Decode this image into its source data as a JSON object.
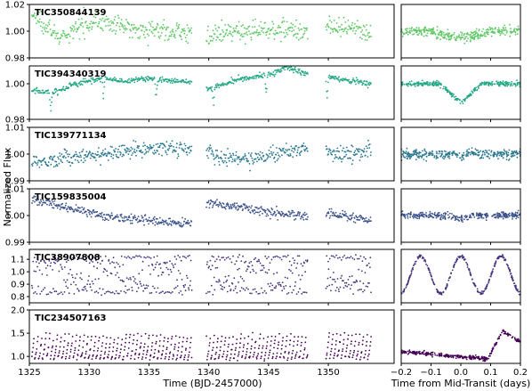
{
  "chart_data": {
    "type": "scatter",
    "ylabel": "Normalized Flux",
    "xlabel_main": "Time (BJD-2457000)",
    "xlabel_phase": "Time from Mid-Transit (days)",
    "xlim_main": [
      1325,
      1355.5
    ],
    "xlim_phase": [
      -0.2,
      0.2
    ],
    "xticks_main": [
      1325,
      1330,
      1335,
      1340,
      1345,
      1350
    ],
    "xtick_labels_main": [
      "1325",
      "1330",
      "1335",
      "1340",
      "1345",
      "1350"
    ],
    "xticks_phase": [
      -0.2,
      -0.1,
      0.0,
      0.1,
      0.2
    ],
    "xtick_labels_phase": [
      "−0.2",
      "−0.1",
      "0.0",
      "0.1",
      "0.2"
    ],
    "data_segments": [
      [
        1325.2,
        1338.6
      ],
      [
        1339.8,
        1348.3
      ],
      [
        1349.8,
        1353.6
      ]
    ],
    "panels": [
      {
        "name": "TIC350844139",
        "color": "#5cc863",
        "ylim": [
          0.98,
          1.02
        ],
        "yticks": [
          0.98,
          1.0,
          1.02
        ],
        "ytick_labels": [
          "0.98",
          "1.00",
          "1.02"
        ],
        "trend": [
          [
            1325.2,
            1.012
          ],
          [
            1326.5,
            1.005
          ],
          [
            1327.5,
            0.994
          ],
          [
            1328.5,
            0.998
          ],
          [
            1329.5,
            1.006
          ],
          [
            1330.5,
            1.009
          ],
          [
            1331.5,
            1.006
          ],
          [
            1333,
            1.003
          ],
          [
            1335,
            1.001
          ],
          [
            1338.6,
            0.999
          ],
          [
            1339.8,
            0.996
          ],
          [
            1342,
            0.999
          ],
          [
            1344,
            1.001
          ],
          [
            1346,
            1.002
          ],
          [
            1348.3,
            1.0
          ],
          [
            1349.8,
            1.003
          ],
          [
            1351.5,
            1.001
          ],
          [
            1353.6,
            1.0
          ]
        ],
        "scatter": 0.0035,
        "phase_curve": "box",
        "phase_depth": 0.004,
        "phase_halfwidth": 0.09,
        "phase_scatter": 0.0018
      },
      {
        "name": "TIC394340319",
        "color": "#22a884",
        "ylim": [
          0.98,
          1.01
        ],
        "yticks": [
          0.98,
          1.0
        ],
        "ytick_labels": [
          "0.98",
          "1.00"
        ],
        "trend": [
          [
            1325.2,
            0.996
          ],
          [
            1327,
            0.995
          ],
          [
            1328.5,
            0.999
          ],
          [
            1330,
            1.002
          ],
          [
            1331.5,
            1.003
          ],
          [
            1333,
            1.001
          ],
          [
            1334.5,
            1.003
          ],
          [
            1336,
            1.002
          ],
          [
            1338.6,
            1.001
          ],
          [
            1339.8,
            0.997
          ],
          [
            1341,
            0.999
          ],
          [
            1342.5,
            1.003
          ],
          [
            1344,
            1.004
          ],
          [
            1345.5,
            1.006
          ],
          [
            1346.5,
            1.009
          ],
          [
            1347.5,
            1.007
          ],
          [
            1348.3,
            1.005
          ],
          [
            1349.8,
            1.004
          ],
          [
            1351.5,
            1.002
          ],
          [
            1353.6,
            1.0
          ]
        ],
        "scatter": 0.0008,
        "dips": [
          1326.8,
          1331.2,
          1335.6,
          1340.4,
          1344.8,
          1349.9
        ],
        "dip_depth": 0.011,
        "phase_curve": "transit",
        "phase_depth": 0.011,
        "phase_halfwidth": 0.07,
        "phase_scatter": 0.0007
      },
      {
        "name": "TIC139771134",
        "color": "#2a788e",
        "ylim": [
          0.99,
          1.01
        ],
        "yticks": [
          0.99,
          1.0,
          1.01
        ],
        "ytick_labels": [
          "0.99",
          "1.00",
          "1.01"
        ],
        "trend": [
          [
            1325.2,
            0.997
          ],
          [
            1327,
            0.998
          ],
          [
            1329,
            0.999
          ],
          [
            1331,
            1.0
          ],
          [
            1333,
            1.001
          ],
          [
            1335,
            1.002
          ],
          [
            1338.6,
            1.002
          ],
          [
            1339.8,
            1.001
          ],
          [
            1341,
            0.999
          ],
          [
            1343,
            0.998
          ],
          [
            1345,
            1.0
          ],
          [
            1348.3,
            1.002
          ],
          [
            1349.8,
            1.001
          ],
          [
            1351.5,
            1.0
          ],
          [
            1353.6,
            1.001
          ]
        ],
        "scatter": 0.0014,
        "phase_curve": "transit",
        "phase_depth": 0.002,
        "phase_halfwidth": 0.02,
        "phase_scatter": 0.0009
      },
      {
        "name": "TIC159835004",
        "color": "#3b528b",
        "ylim": [
          0.99,
          1.01
        ],
        "yticks": [
          0.99,
          1.0,
          1.01
        ],
        "ytick_labels": [
          "0.99",
          "1.00",
          "1.01"
        ],
        "trend": [
          [
            1325.2,
            1.006
          ],
          [
            1327,
            1.004
          ],
          [
            1329,
            1.002
          ],
          [
            1331,
            1.0
          ],
          [
            1333,
            0.999
          ],
          [
            1335,
            0.998
          ],
          [
            1338.6,
            0.997
          ],
          [
            1339.8,
            1.005
          ],
          [
            1341,
            1.004
          ],
          [
            1343,
            1.003
          ],
          [
            1345,
            1.001
          ],
          [
            1348.3,
            1.0
          ],
          [
            1349.8,
            1.001
          ],
          [
            1351.5,
            1.0
          ],
          [
            1353.6,
            0.998
          ]
        ],
        "scatter": 0.0008,
        "phase_curve": "transit",
        "phase_depth": 0.0015,
        "phase_halfwidth": 0.04,
        "phase_scatter": 0.0006
      },
      {
        "name": "TIC38907808",
        "color": "#46337e",
        "ylim": [
          0.75,
          1.18
        ],
        "yticks": [
          0.8,
          0.9,
          1.0,
          1.1
        ],
        "ytick_labels": [
          "0.8",
          "0.9",
          "1.0",
          "1.1"
        ],
        "phase_curve": "sine",
        "sine_center": 0.975,
        "sine_amplitude": 0.15,
        "sine_period": 0.135,
        "phase_scatter": 0.006
      },
      {
        "name": "TIC234507163",
        "color": "#440154",
        "ylim": [
          0.85,
          2.0
        ],
        "yticks": [
          1.0,
          1.5,
          2.0
        ],
        "ytick_labels": [
          "1.0",
          "1.5",
          "2.0"
        ],
        "phase_curve": "sawtooth",
        "saw_low": 0.95,
        "saw_high": 1.5,
        "saw_period": 0.32,
        "phase_scatter": 0.02
      }
    ]
  }
}
